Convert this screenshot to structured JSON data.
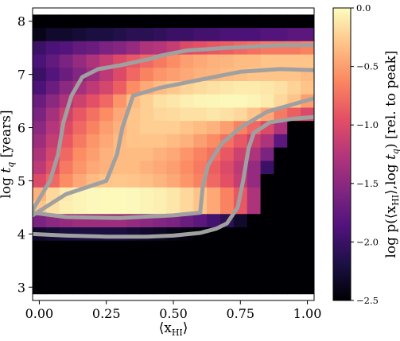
{
  "chart_data": {
    "type": "heatmap",
    "xlabel": "⟨x_HI⟩",
    "ylabel": "log t_q [years]",
    "xlim": [
      -0.025,
      1.025
    ],
    "ylim": [
      2.75,
      8.25
    ],
    "x_ticks": [
      0.0,
      0.25,
      0.5,
      0.75,
      1.0
    ],
    "x_tick_labels": [
      "0.00",
      "0.25",
      "0.50",
      "0.75",
      "1.00"
    ],
    "y_ticks": [
      3,
      4,
      5,
      6,
      7,
      8
    ],
    "y_tick_labels": [
      "3",
      "4",
      "5",
      "6",
      "7",
      "8"
    ],
    "colormap": "magma",
    "colorbar": {
      "label": "log p(⟨x_HI⟩, log t_q) [rel. to peak]",
      "range": [
        -2.5,
        0.0
      ],
      "ticks": [
        0.0,
        -0.5,
        -1.0,
        -1.5,
        -2.0,
        -2.5
      ],
      "tick_labels": [
        "0.0",
        "−0.5",
        "−1.0",
        "−1.5",
        "−2.0",
        "−2.5"
      ]
    },
    "x_bins": [
      0.0,
      0.05,
      0.1,
      0.15,
      0.2,
      0.25,
      0.3,
      0.35,
      0.4,
      0.45,
      0.5,
      0.55,
      0.6,
      0.65,
      0.7,
      0.75,
      0.8,
      0.85,
      0.9,
      0.95,
      1.0
    ],
    "y_bins": [
      8.0,
      7.75,
      7.5,
      7.25,
      7.0,
      6.75,
      6.5,
      6.25,
      6.0,
      5.75,
      5.5,
      5.25,
      5.0,
      4.75,
      4.5,
      4.25,
      4.0,
      3.75,
      3.5,
      3.25,
      3.0
    ],
    "z_rows": [
      [
        -2.5,
        -2.5,
        -2.5,
        -2.5,
        -2.5,
        -2.5,
        -2.5,
        -2.5,
        -2.5,
        -2.5,
        -2.5,
        -2.5,
        -2.5,
        -2.5,
        -2.5,
        -2.5,
        -2.5,
        -2.5,
        -2.5,
        -2.5,
        -2.5
      ],
      [
        -2.4,
        -2.3,
        -2.3,
        -2.25,
        -2.2,
        -2.2,
        -2.15,
        -2.1,
        -2.1,
        -2.05,
        -2.0,
        -2.0,
        -1.95,
        -1.95,
        -1.9,
        -1.9,
        -1.9,
        -1.85,
        -1.85,
        -1.8,
        -1.8
      ],
      [
        -2.0,
        -1.9,
        -1.85,
        -1.75,
        -1.7,
        -1.6,
        -1.55,
        -1.45,
        -1.3,
        -1.25,
        -1.15,
        -1.0,
        -0.95,
        -0.9,
        -0.85,
        -0.8,
        -0.75,
        -0.7,
        -0.7,
        -0.7,
        -0.65
      ],
      [
        -1.9,
        -1.75,
        -1.6,
        -1.45,
        -1.3,
        -1.15,
        -1.0,
        -0.9,
        -0.8,
        -0.7,
        -0.6,
        -0.5,
        -0.45,
        -0.4,
        -0.38,
        -0.35,
        -0.35,
        -0.3,
        -0.3,
        -0.3,
        -0.3
      ],
      [
        -2.0,
        -1.85,
        -1.7,
        -1.55,
        -1.4,
        -1.2,
        -1.0,
        -0.8,
        -0.65,
        -0.55,
        -0.5,
        -0.45,
        -0.4,
        -0.38,
        -0.35,
        -0.33,
        -0.3,
        -0.3,
        -0.3,
        -0.3,
        -0.35
      ],
      [
        -1.9,
        -1.7,
        -1.5,
        -1.35,
        -1.2,
        -1.05,
        -0.85,
        -0.6,
        -0.45,
        -0.35,
        -0.28,
        -0.22,
        -0.18,
        -0.15,
        -0.12,
        -0.1,
        -0.1,
        -0.12,
        -0.15,
        -0.22,
        -0.3
      ],
      [
        -1.7,
        -1.5,
        -1.3,
        -1.1,
        -0.95,
        -0.8,
        -0.55,
        -0.35,
        -0.25,
        -0.15,
        -0.12,
        -0.08,
        -0.05,
        -0.04,
        -0.03,
        -0.03,
        -0.05,
        -0.1,
        -0.2,
        -0.3,
        -0.5
      ],
      [
        -1.6,
        -1.35,
        -1.1,
        -0.9,
        -0.75,
        -0.6,
        -0.45,
        -0.3,
        -0.25,
        -0.2,
        -0.18,
        -0.15,
        -0.15,
        -0.12,
        -0.15,
        -0.2,
        -0.3,
        -0.45,
        -0.7,
        -0.85,
        -1.0
      ],
      [
        -1.5,
        -1.25,
        -1.0,
        -0.8,
        -0.65,
        -0.5,
        -0.4,
        -0.3,
        -0.25,
        -0.25,
        -0.25,
        -0.3,
        -0.35,
        -0.4,
        -0.5,
        -0.65,
        -0.8,
        -1.0,
        -1.3,
        -2.5,
        -2.5
      ],
      [
        -1.4,
        -1.15,
        -0.9,
        -0.7,
        -0.55,
        -0.45,
        -0.35,
        -0.3,
        -0.3,
        -0.3,
        -0.35,
        -0.4,
        -0.5,
        -0.6,
        -0.75,
        -0.9,
        -1.1,
        -1.3,
        -1.8,
        -2.5,
        -2.5
      ],
      [
        -1.3,
        -1.05,
        -0.8,
        -0.6,
        -0.5,
        -0.4,
        -0.35,
        -0.35,
        -0.35,
        -0.4,
        -0.45,
        -0.55,
        -0.65,
        -0.75,
        -0.9,
        -1.1,
        -1.3,
        -1.6,
        -2.5,
        -2.5,
        -2.5
      ],
      [
        -1.2,
        -0.95,
        -0.7,
        -0.55,
        -0.45,
        -0.4,
        -0.35,
        -0.35,
        -0.4,
        -0.45,
        -0.5,
        -0.6,
        -0.7,
        -0.85,
        -1.0,
        -1.2,
        -1.45,
        -2.0,
        -2.5,
        -2.5,
        -2.5
      ],
      [
        -1.0,
        -0.8,
        -0.6,
        -0.45,
        -0.35,
        -0.3,
        -0.28,
        -0.3,
        -0.33,
        -0.38,
        -0.45,
        -0.55,
        -0.65,
        -0.8,
        -0.95,
        -1.15,
        -1.45,
        -2.5,
        -2.5,
        -2.5,
        -2.5
      ],
      [
        -0.4,
        -0.2,
        -0.1,
        -0.05,
        -0.03,
        -0.02,
        -0.02,
        -0.03,
        -0.05,
        -0.08,
        -0.12,
        -0.2,
        -0.3,
        -0.45,
        -0.65,
        -0.9,
        -1.3,
        -2.5,
        -2.5,
        -2.5,
        -2.5
      ],
      [
        -0.3,
        -0.15,
        -0.08,
        -0.05,
        -0.03,
        -0.02,
        -0.02,
        -0.03,
        -0.05,
        -0.08,
        -0.12,
        -0.2,
        -0.3,
        -0.45,
        -0.65,
        -0.9,
        -1.3,
        -2.5,
        -2.5,
        -2.5,
        -2.5
      ],
      [
        -1.6,
        -1.5,
        -1.45,
        -1.4,
        -1.4,
        -1.4,
        -1.4,
        -1.45,
        -1.5,
        -1.55,
        -1.6,
        -1.7,
        -1.8,
        -1.95,
        -2.1,
        -2.3,
        -2.5,
        -2.5,
        -2.5,
        -2.5,
        -2.5
      ],
      [
        -2.3,
        -2.25,
        -2.2,
        -2.2,
        -2.2,
        -2.2,
        -2.2,
        -2.25,
        -2.3,
        -2.35,
        -2.4,
        -2.45,
        -2.5,
        -2.5,
        -2.5,
        -2.5,
        -2.5,
        -2.5,
        -2.5,
        -2.5,
        -2.5
      ],
      [
        -2.5,
        -2.5,
        -2.5,
        -2.5,
        -2.5,
        -2.5,
        -2.5,
        -2.5,
        -2.5,
        -2.5,
        -2.5,
        -2.5,
        -2.5,
        -2.5,
        -2.5,
        -2.5,
        -2.5,
        -2.5,
        -2.5,
        -2.5,
        -2.5
      ],
      [
        -2.5,
        -2.5,
        -2.5,
        -2.5,
        -2.5,
        -2.5,
        -2.5,
        -2.5,
        -2.5,
        -2.5,
        -2.5,
        -2.5,
        -2.5,
        -2.5,
        -2.5,
        -2.5,
        -2.5,
        -2.5,
        -2.5,
        -2.5,
        -2.5
      ],
      [
        -2.5,
        -2.5,
        -2.5,
        -2.5,
        -2.5,
        -2.5,
        -2.5,
        -2.5,
        -2.5,
        -2.5,
        -2.5,
        -2.5,
        -2.5,
        -2.5,
        -2.5,
        -2.5,
        -2.5,
        -2.5,
        -2.5,
        -2.5,
        -2.5
      ],
      [
        -2.5,
        -2.5,
        -2.5,
        -2.5,
        -2.5,
        -2.5,
        -2.5,
        -2.5,
        -2.5,
        -2.5,
        -2.5,
        -2.5,
        -2.5,
        -2.5,
        -2.5,
        -2.5,
        -2.5,
        -2.5,
        -2.5,
        -2.5,
        -2.5
      ]
    ],
    "contours": [
      {
        "level": "outer",
        "points": [
          [
            -0.025,
            4.0
          ],
          [
            0.1,
            3.97
          ],
          [
            0.25,
            3.95
          ],
          [
            0.4,
            3.95
          ],
          [
            0.5,
            3.97
          ],
          [
            0.6,
            4.02
          ],
          [
            0.66,
            4.1
          ],
          [
            0.7,
            4.2
          ],
          [
            0.74,
            4.5
          ],
          [
            0.76,
            5.0
          ],
          [
            0.78,
            5.6
          ],
          [
            0.8,
            5.9
          ],
          [
            0.86,
            6.1
          ],
          [
            0.95,
            6.17
          ],
          [
            1.025,
            6.2
          ]
        ]
      },
      {
        "level": "outer",
        "points": [
          [
            -0.025,
            4.45
          ],
          [
            0.04,
            5.0
          ],
          [
            0.07,
            5.5
          ],
          [
            0.09,
            6.1
          ],
          [
            0.12,
            6.6
          ],
          [
            0.16,
            6.95
          ],
          [
            0.22,
            7.1
          ],
          [
            0.3,
            7.17
          ],
          [
            0.42,
            7.3
          ],
          [
            0.45,
            7.35
          ],
          [
            0.55,
            7.45
          ],
          [
            0.7,
            7.5
          ],
          [
            0.9,
            7.55
          ],
          [
            1.025,
            7.55
          ]
        ]
      },
      {
        "level": "inner",
        "points": [
          [
            -0.025,
            4.35
          ],
          [
            0.1,
            4.75
          ],
          [
            0.25,
            5.0
          ],
          [
            0.29,
            5.5
          ],
          [
            0.31,
            6.0
          ],
          [
            0.35,
            6.6
          ],
          [
            0.45,
            6.75
          ],
          [
            0.6,
            6.9
          ],
          [
            0.75,
            7.05
          ],
          [
            0.9,
            7.1
          ],
          [
            1.025,
            7.08
          ]
        ]
      },
      {
        "level": "inner",
        "points": [
          [
            -0.025,
            4.4
          ],
          [
            0.1,
            4.32
          ],
          [
            0.3,
            4.3
          ],
          [
            0.5,
            4.35
          ],
          [
            0.6,
            4.4
          ],
          [
            0.61,
            4.9
          ],
          [
            0.63,
            5.3
          ],
          [
            0.68,
            5.7
          ],
          [
            0.75,
            6.0
          ],
          [
            0.85,
            6.3
          ],
          [
            1.025,
            6.55
          ]
        ]
      }
    ],
    "contour_color": "#a0a0a0"
  }
}
